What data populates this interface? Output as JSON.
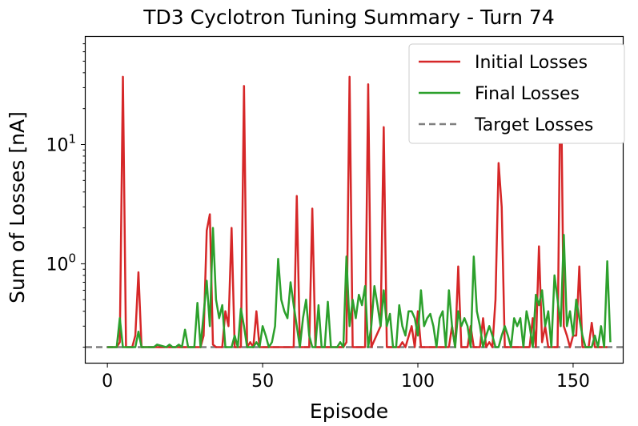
{
  "chart_data": {
    "type": "line",
    "title": "TD3 Cyclotron Tuning Summary - Turn 74",
    "xlabel": "Episode",
    "ylabel": "Sum of Losses [nA]",
    "y_scale": "log",
    "xlim": [
      -7,
      166
    ],
    "ylim": [
      0.148,
      80
    ],
    "x_ticks": [
      0,
      50,
      100,
      150
    ],
    "y_ticks": [
      {
        "value": 1,
        "base": "10",
        "exp": "0"
      },
      {
        "value": 10,
        "base": "10",
        "exp": "1"
      }
    ],
    "grid": false,
    "legend_position": "top-right",
    "target": 0.2,
    "series": [
      {
        "name": "Initial Losses",
        "color": "#d62728",
        "points": [
          [
            0,
            0.2
          ],
          [
            3,
            0.2
          ],
          [
            4,
            0.22
          ],
          [
            5,
            37
          ],
          [
            6,
            0.2
          ],
          [
            8,
            0.2
          ],
          [
            9,
            0.25
          ],
          [
            10,
            0.85
          ],
          [
            11,
            0.2
          ],
          [
            25,
            0.2
          ],
          [
            30,
            0.2
          ],
          [
            31,
            0.25
          ],
          [
            32,
            1.9
          ],
          [
            33,
            2.6
          ],
          [
            34,
            0.21
          ],
          [
            35,
            0.2
          ],
          [
            36,
            0.2
          ],
          [
            37,
            0.2
          ],
          [
            38,
            0.4
          ],
          [
            39,
            0.3
          ],
          [
            40,
            2
          ],
          [
            41,
            0.2
          ],
          [
            43,
            0.2
          ],
          [
            44,
            31
          ],
          [
            45,
            0.2
          ],
          [
            46,
            0.22
          ],
          [
            47,
            0.2
          ],
          [
            48,
            0.4
          ],
          [
            49,
            0.2
          ],
          [
            60,
            0.2
          ],
          [
            61,
            3.7
          ],
          [
            62,
            0.2
          ],
          [
            65,
            0.2
          ],
          [
            66,
            2.9
          ],
          [
            67,
            0.2
          ],
          [
            76,
            0.2
          ],
          [
            77,
            0.22
          ],
          [
            78,
            37
          ],
          [
            79,
            0.2
          ],
          [
            83,
            0.2
          ],
          [
            84,
            32
          ],
          [
            85,
            0.2
          ],
          [
            88,
            0.3
          ],
          [
            89,
            14
          ],
          [
            90,
            0.2
          ],
          [
            93,
            0.2
          ],
          [
            94,
            0.2
          ],
          [
            95,
            0.22
          ],
          [
            96,
            0.2
          ],
          [
            98,
            0.3
          ],
          [
            99,
            0.2
          ],
          [
            100,
            0.4
          ],
          [
            101,
            0.2
          ],
          [
            110,
            0.2
          ],
          [
            111,
            0.3
          ],
          [
            112,
            0.2
          ],
          [
            113,
            0.95
          ],
          [
            114,
            0.2
          ],
          [
            116,
            0.2
          ],
          [
            117,
            0.3
          ],
          [
            118,
            0.2
          ],
          [
            120,
            0.2
          ],
          [
            121,
            0.35
          ],
          [
            122,
            0.2
          ],
          [
            123,
            0.22
          ],
          [
            124,
            0.2
          ],
          [
            125,
            0.5
          ],
          [
            126,
            7
          ],
          [
            127,
            3
          ],
          [
            128,
            0.2
          ],
          [
            136,
            0.2
          ],
          [
            137,
            0.35
          ],
          [
            138,
            0.2
          ],
          [
            139,
            1.4
          ],
          [
            140,
            0.22
          ],
          [
            141,
            0.3
          ],
          [
            142,
            0.2
          ],
          [
            145,
            0.2
          ],
          [
            146,
            60
          ],
          [
            147,
            0.3
          ],
          [
            148,
            0.25
          ],
          [
            149,
            0.2
          ],
          [
            150,
            0.25
          ],
          [
            151,
            0.25
          ],
          [
            152,
            0.95
          ],
          [
            153,
            0.2
          ],
          [
            155,
            0.2
          ],
          [
            156,
            0.32
          ],
          [
            157,
            0.2
          ],
          [
            160,
            0.2
          ],
          [
            161,
            0.2
          ]
        ]
      },
      {
        "name": "Final Losses",
        "color": "#2ca02c",
        "points": [
          [
            0,
            0.2
          ],
          [
            3,
            0.2
          ],
          [
            4,
            0.35
          ],
          [
            5,
            0.2
          ],
          [
            9,
            0.2
          ],
          [
            10,
            0.27
          ],
          [
            11,
            0.2
          ],
          [
            15,
            0.2
          ],
          [
            16,
            0.21
          ],
          [
            19,
            0.2
          ],
          [
            20,
            0.21
          ],
          [
            21,
            0.2
          ],
          [
            22,
            0.2
          ],
          [
            23,
            0.21
          ],
          [
            24,
            0.2
          ],
          [
            25,
            0.28
          ],
          [
            26,
            0.2
          ],
          [
            28,
            0.2
          ],
          [
            29,
            0.47
          ],
          [
            30,
            0.2
          ],
          [
            32,
            0.72
          ],
          [
            33,
            0.3
          ],
          [
            34,
            2
          ],
          [
            35,
            0.5
          ],
          [
            36,
            0.35
          ],
          [
            37,
            0.45
          ],
          [
            38,
            0.2
          ],
          [
            40,
            0.2
          ],
          [
            41,
            0.25
          ],
          [
            42,
            0.2
          ],
          [
            43,
            0.42
          ],
          [
            44,
            0.3
          ],
          [
            45,
            0.2
          ],
          [
            47,
            0.2
          ],
          [
            48,
            0.22
          ],
          [
            49,
            0.2
          ],
          [
            50,
            0.3
          ],
          [
            51,
            0.25
          ],
          [
            52,
            0.2
          ],
          [
            53,
            0.22
          ],
          [
            54,
            0.3
          ],
          [
            55,
            1.1
          ],
          [
            56,
            0.5
          ],
          [
            57,
            0.4
          ],
          [
            58,
            0.35
          ],
          [
            59,
            0.7
          ],
          [
            60,
            0.45
          ],
          [
            61,
            0.3
          ],
          [
            62,
            0.2
          ],
          [
            63,
            0.35
          ],
          [
            64,
            0.5
          ],
          [
            65,
            0.25
          ],
          [
            66,
            0.2
          ],
          [
            67,
            0.2
          ],
          [
            68,
            0.45
          ],
          [
            69,
            0.2
          ],
          [
            70,
            0.2
          ],
          [
            71,
            0.48
          ],
          [
            72,
            0.2
          ],
          [
            74,
            0.2
          ],
          [
            75,
            0.22
          ],
          [
            76,
            0.2
          ],
          [
            77,
            1.15
          ],
          [
            78,
            0.3
          ],
          [
            79,
            0.5
          ],
          [
            80,
            0.35
          ],
          [
            81,
            0.55
          ],
          [
            82,
            0.45
          ],
          [
            83,
            0.65
          ],
          [
            84,
            0.2
          ],
          [
            85,
            0.3
          ],
          [
            86,
            0.65
          ],
          [
            87,
            0.45
          ],
          [
            88,
            0.3
          ],
          [
            89,
            0.6
          ],
          [
            90,
            0.3
          ],
          [
            91,
            0.38
          ],
          [
            92,
            0.2
          ],
          [
            93,
            0.2
          ],
          [
            94,
            0.45
          ],
          [
            95,
            0.3
          ],
          [
            96,
            0.25
          ],
          [
            97,
            0.4
          ],
          [
            98,
            0.4
          ],
          [
            99,
            0.35
          ],
          [
            100,
            0.25
          ],
          [
            101,
            0.6
          ],
          [
            102,
            0.3
          ],
          [
            103,
            0.35
          ],
          [
            104,
            0.38
          ],
          [
            105,
            0.3
          ],
          [
            106,
            0.2
          ],
          [
            107,
            0.35
          ],
          [
            108,
            0.4
          ],
          [
            109,
            0.2
          ],
          [
            110,
            0.6
          ],
          [
            111,
            0.3
          ],
          [
            112,
            0.2
          ],
          [
            113,
            0.4
          ],
          [
            114,
            0.3
          ],
          [
            115,
            0.35
          ],
          [
            116,
            0.3
          ],
          [
            117,
            0.2
          ],
          [
            118,
            1.15
          ],
          [
            119,
            0.4
          ],
          [
            120,
            0.3
          ],
          [
            121,
            0.2
          ],
          [
            122,
            0.25
          ],
          [
            123,
            0.3
          ],
          [
            124,
            0.25
          ],
          [
            125,
            0.2
          ],
          [
            126,
            0.2
          ],
          [
            127,
            0.25
          ],
          [
            128,
            0.3
          ],
          [
            129,
            0.25
          ],
          [
            130,
            0.2
          ],
          [
            131,
            0.35
          ],
          [
            132,
            0.3
          ],
          [
            133,
            0.35
          ],
          [
            134,
            0.2
          ],
          [
            135,
            0.4
          ],
          [
            136,
            0.3
          ],
          [
            137,
            0.2
          ],
          [
            138,
            0.55
          ],
          [
            139,
            0.45
          ],
          [
            140,
            0.6
          ],
          [
            141,
            0.3
          ],
          [
            142,
            0.4
          ],
          [
            143,
            0.2
          ],
          [
            144,
            0.8
          ],
          [
            145,
            0.5
          ],
          [
            146,
            0.3
          ],
          [
            147,
            1.75
          ],
          [
            148,
            0.3
          ],
          [
            149,
            0.4
          ],
          [
            150,
            0.25
          ],
          [
            151,
            0.5
          ],
          [
            152,
            0.35
          ],
          [
            153,
            0.25
          ],
          [
            154,
            0.2
          ],
          [
            156,
            0.2
          ],
          [
            157,
            0.25
          ],
          [
            158,
            0.2
          ],
          [
            159,
            0.3
          ],
          [
            160,
            0.2
          ],
          [
            161,
            1.05
          ],
          [
            162,
            0.22
          ]
        ]
      },
      {
        "name": "Target Losses",
        "color": "#7f7f7f",
        "style": "dashed",
        "points": [
          [
            -7,
            0.2
          ],
          [
            166,
            0.2
          ]
        ]
      }
    ]
  }
}
